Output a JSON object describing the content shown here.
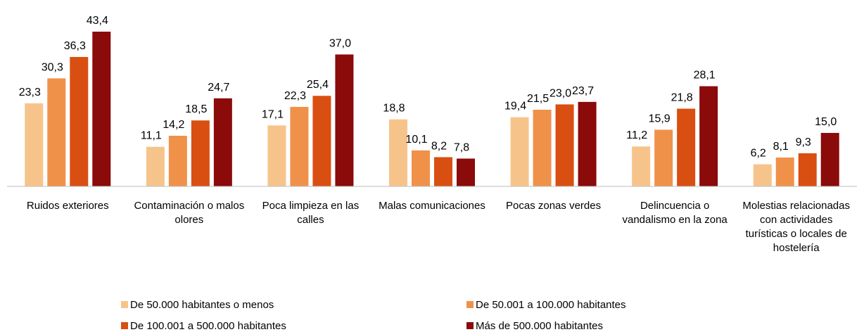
{
  "chart_data": {
    "type": "bar",
    "categories": [
      "Ruidos exteriores",
      "Contaminación o malos olores",
      "Poca limpieza en las calles",
      "Malas comunicaciones",
      "Pocas zonas verdes",
      "Delincuencia o vandalismo en la zona",
      "Molestias relacionadas con actividades turísticas o locales de hostelería"
    ],
    "series": [
      {
        "name": "De 50.000 habitantes o menos",
        "color": "#f6c48a",
        "values": [
          23.3,
          11.1,
          17.1,
          18.8,
          19.4,
          11.2,
          6.2
        ],
        "value_labels": [
          "23,3",
          "11,1",
          "17,1",
          "18,8",
          "19,4",
          "11,2",
          "6,2"
        ]
      },
      {
        "name": "De 50.001 a 100.000 habitantes",
        "color": "#f0914a",
        "values": [
          30.3,
          14.2,
          22.3,
          10.1,
          21.5,
          15.9,
          8.1
        ],
        "value_labels": [
          "30,3",
          "14,2",
          "22,3",
          "10,1",
          "21,5",
          "15,9",
          "8,1"
        ]
      },
      {
        "name": "De 100.001 a 500.000 habitantes",
        "color": "#d94f12",
        "values": [
          36.3,
          18.5,
          25.4,
          8.2,
          23.0,
          21.8,
          9.3
        ],
        "value_labels": [
          "36,3",
          "18,5",
          "25,4",
          "8,2",
          "23,0",
          "21,8",
          "9,3"
        ]
      },
      {
        "name": "Más de 500.000 habitantes",
        "color": "#8b0a0a",
        "values": [
          43.4,
          24.7,
          37.0,
          7.8,
          23.7,
          28.1,
          15.0
        ],
        "value_labels": [
          "43,4",
          "24,7",
          "37,0",
          "7,8",
          "23,7",
          "28,1",
          "15,0"
        ]
      }
    ],
    "legend": "bottom"
  }
}
